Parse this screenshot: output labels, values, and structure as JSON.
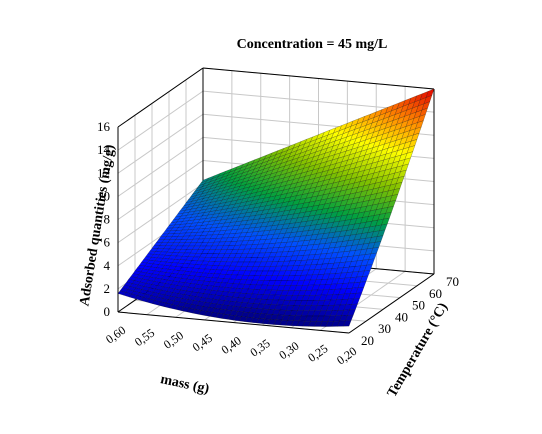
{
  "chart_data": {
    "type": "surface3d",
    "title": "Concentration = 45 mg/L",
    "zlabel": "Adsorbed quantities (mg/g)",
    "xlabel": "mass (g)",
    "ylabel": "Temperature (°C)",
    "z_ticks": [
      "0",
      "2",
      "4",
      "6",
      "8",
      "10",
      "12",
      "14",
      "16"
    ],
    "x_ticks": [
      "0,60",
      "0,55",
      "0,50",
      "0,45",
      "0,40",
      "0,35",
      "0,30",
      "0,25",
      "0,20"
    ],
    "y_ticks": [
      "20",
      "30",
      "40",
      "50",
      "60",
      "70"
    ],
    "zlim": [
      0,
      16
    ],
    "xlim": [
      0.2,
      0.6
    ],
    "ylim": [
      20,
      70
    ],
    "grid": true,
    "colormap": [
      "#00008b",
      "#0000ff",
      "#0050ff",
      "#00a040",
      "#80c000",
      "#ffff00",
      "#ff8000",
      "#e00000"
    ],
    "surface_corners": [
      {
        "mass": 0.6,
        "temperature": 20,
        "q": 1.6
      },
      {
        "mass": 0.6,
        "temperature": 70,
        "q": 6.3
      },
      {
        "mass": 0.2,
        "temperature": 20,
        "q": 0.6
      },
      {
        "mass": 0.2,
        "temperature": 70,
        "q": 16.0
      }
    ]
  }
}
